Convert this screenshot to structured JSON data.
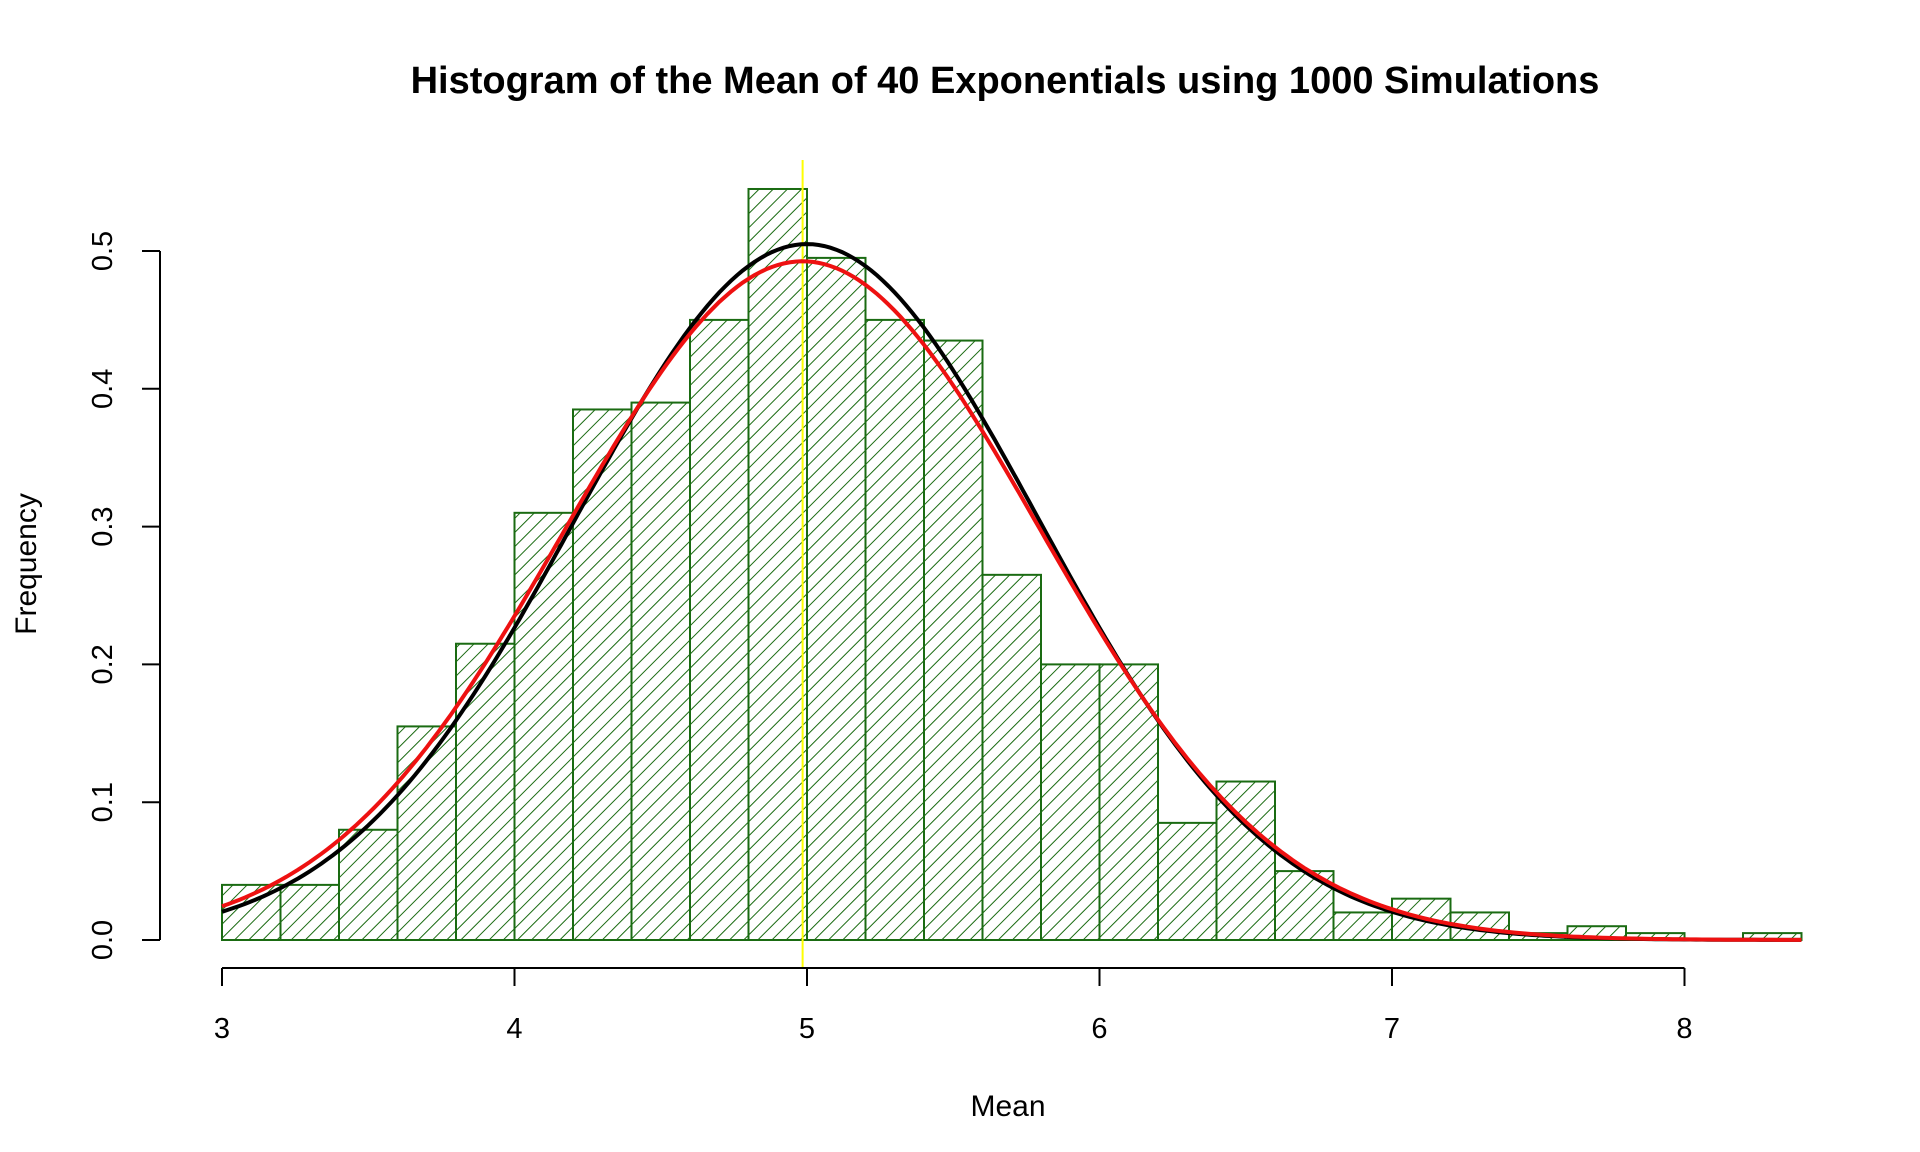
{
  "chart_data": {
    "type": "bar",
    "title": "Histogram of the Mean of 40 Exponentials using 1000 Simulations",
    "xlabel": "Mean",
    "ylabel": "Frequency",
    "xlim": [
      3,
      8.4
    ],
    "ylim": [
      0,
      0.5
    ],
    "x_ticks": [
      "3",
      "4",
      "5",
      "6",
      "7",
      "8"
    ],
    "y_ticks": [
      "0.0",
      "0.1",
      "0.2",
      "0.3",
      "0.4",
      "0.5"
    ],
    "bin_width": 0.2,
    "bin_starts": [
      3.0,
      3.2,
      3.4,
      3.6,
      3.8,
      4.0,
      4.2,
      4.4,
      4.6,
      4.8,
      5.0,
      5.2,
      5.4,
      5.6,
      5.8,
      6.0,
      6.2,
      6.4,
      6.6,
      6.8,
      7.0,
      7.2,
      7.4,
      7.6,
      7.8,
      8.0,
      8.2
    ],
    "values": [
      0.04,
      0.04,
      0.08,
      0.155,
      0.215,
      0.31,
      0.385,
      0.39,
      0.45,
      0.545,
      0.495,
      0.45,
      0.435,
      0.265,
      0.2,
      0.2,
      0.085,
      0.115,
      0.05,
      0.02,
      0.03,
      0.02,
      0.005,
      0.01,
      0.005,
      0.0,
      0.005
    ],
    "bar_fill": "hatched",
    "bar_color": "#1a6b12",
    "vertical_line": {
      "x": 4.985,
      "color": "#ffff00"
    },
    "curves": [
      {
        "kind": "normal-density",
        "mean": 5.0,
        "sd": 0.79,
        "color": "#000000"
      },
      {
        "kind": "normal-density",
        "mean": 4.985,
        "sd": 0.81,
        "color": "#ee1111"
      }
    ],
    "grid": false,
    "legend": "none"
  }
}
